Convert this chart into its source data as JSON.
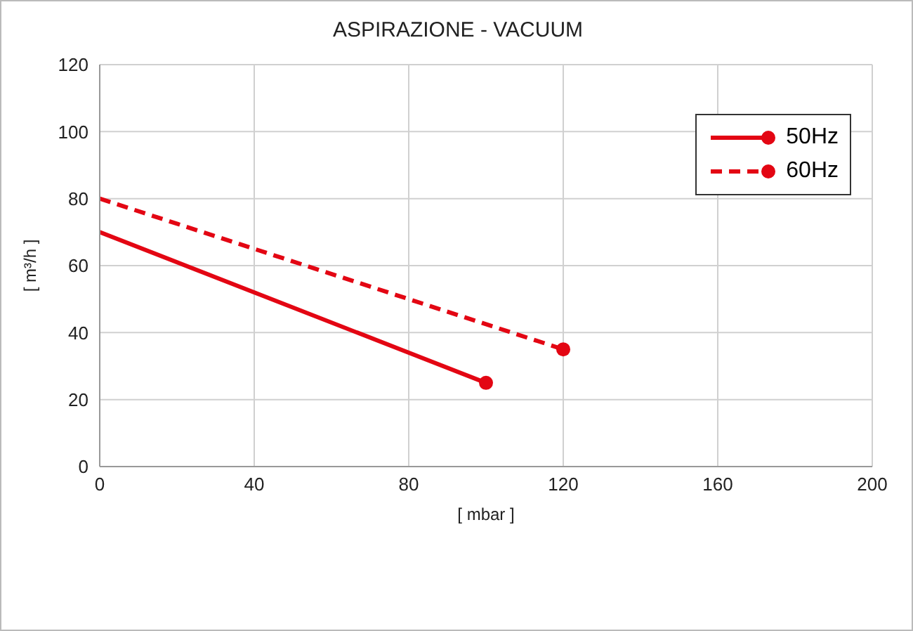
{
  "chart_data": {
    "type": "line",
    "title": "ASPIRAZIONE - VACUUM",
    "xlabel": "[ mbar ]",
    "ylabel": "[ m³/h ]",
    "series": [
      {
        "name": "50Hz",
        "color": "#e30613",
        "x": [
          0,
          100
        ],
        "values": [
          70,
          25
        ],
        "line_style": "solid"
      },
      {
        "name": "60Hz",
        "color": "#e30613",
        "x": [
          0,
          120
        ],
        "values": [
          80,
          35
        ],
        "line_style": "dashed"
      }
    ],
    "xlim": [
      0,
      200
    ],
    "xticks": [
      0,
      40,
      80,
      120,
      160,
      200
    ],
    "ylim": [
      0,
      120
    ],
    "yticks": [
      0,
      20,
      40,
      60,
      80,
      100,
      120
    ],
    "grid": true,
    "legend": "top right",
    "marker": "circle"
  }
}
